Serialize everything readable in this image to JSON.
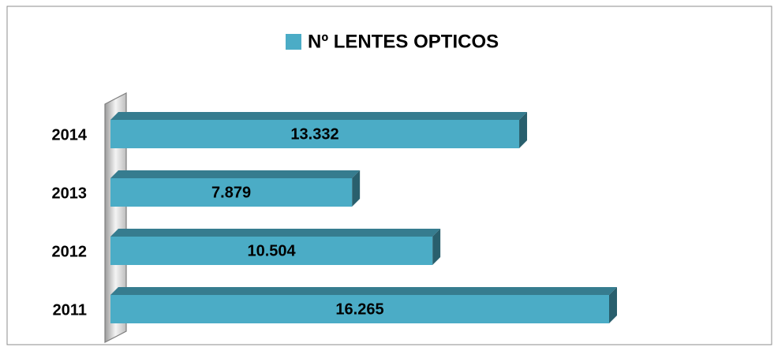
{
  "chart_data": {
    "type": "bar",
    "orientation": "horizontal",
    "legend": "top",
    "categories": [
      "2014",
      "2013",
      "2012",
      "2011"
    ],
    "series": [
      {
        "name": "Nº LENTES OPTICOS",
        "color": "#4bacc6",
        "values": [
          13332,
          7879,
          10504,
          16265
        ],
        "value_labels": [
          "13.332",
          "7.879",
          "10.504",
          "16.265"
        ]
      }
    ]
  }
}
